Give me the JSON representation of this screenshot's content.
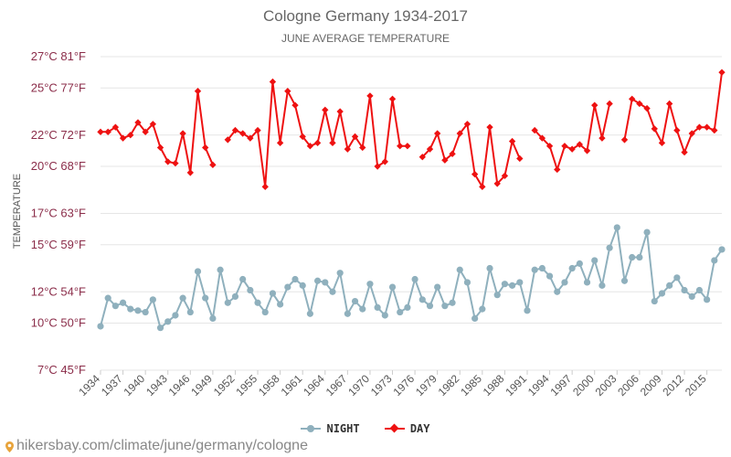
{
  "chart": {
    "title": "Cologne Germany 1934-2017",
    "subtitle": "JUNE AVERAGE TEMPERATURE",
    "ylabel": "TEMPERATURE",
    "legend": {
      "night": "NIGHT",
      "day": "DAY"
    },
    "footer": "hikersbay.com/climate/june/germany/cologne"
  },
  "colors": {
    "night": "#8fb0bd",
    "day": "#ee1111",
    "grid": "#e6e6e6",
    "axis_text": "#8b2d4a",
    "tick_text": "#555555"
  },
  "chart_data": {
    "type": "line",
    "title": "Cologne Germany 1934-2017",
    "subtitle": "JUNE AVERAGE TEMPERATURE",
    "xlabel": "",
    "ylabel": "TEMPERATURE",
    "ylim": [
      7,
      27
    ],
    "y_ticks": [
      {
        "value": 7,
        "label": "7°C 45°F"
      },
      {
        "value": 10,
        "label": "10°C 50°F"
      },
      {
        "value": 12,
        "label": "12°C 54°F"
      },
      {
        "value": 15,
        "label": "15°C 59°F"
      },
      {
        "value": 17,
        "label": "17°C 63°F"
      },
      {
        "value": 20,
        "label": "20°C 68°F"
      },
      {
        "value": 22,
        "label": "22°C 72°F"
      },
      {
        "value": 25,
        "label": "25°C 77°F"
      },
      {
        "value": 27,
        "label": "27°C 81°F"
      }
    ],
    "x_ticks": [
      1934,
      1937,
      1940,
      1943,
      1946,
      1949,
      1952,
      1955,
      1958,
      1961,
      1964,
      1967,
      1970,
      1973,
      1976,
      1979,
      1982,
      1985,
      1988,
      1991,
      1994,
      1997,
      2000,
      2003,
      2006,
      2009,
      2012,
      2015
    ],
    "x_range": [
      1934,
      2017
    ],
    "grid": true,
    "legend_position": "bottom",
    "series": [
      {
        "name": "NIGHT",
        "x": [
          1934,
          1935,
          1936,
          1937,
          1938,
          1939,
          1940,
          1941,
          1942,
          1943,
          1944,
          1945,
          1946,
          1947,
          1948,
          1949,
          1950,
          1951,
          1952,
          1953,
          1954,
          1955,
          1956,
          1957,
          1958,
          1959,
          1960,
          1961,
          1962,
          1963,
          1964,
          1965,
          1966,
          1967,
          1968,
          1969,
          1970,
          1971,
          1972,
          1973,
          1974,
          1975,
          1976,
          1977,
          1978,
          1979,
          1980,
          1981,
          1982,
          1983,
          1984,
          1985,
          1986,
          1987,
          1988,
          1989,
          1990,
          1991,
          1992,
          1993,
          1994,
          1995,
          1996,
          1997,
          1998,
          1999,
          2000,
          2001,
          2002,
          2003,
          2004,
          2005,
          2006,
          2007,
          2008,
          2009,
          2010,
          2011,
          2012,
          2013,
          2014,
          2015,
          2016,
          2017
        ],
        "values": [
          9.8,
          11.6,
          11.1,
          11.3,
          10.9,
          10.8,
          10.7,
          11.5,
          9.7,
          10.1,
          10.5,
          11.6,
          10.7,
          13.3,
          11.6,
          10.3,
          13.4,
          11.3,
          11.7,
          12.8,
          12.1,
          11.3,
          10.7,
          11.9,
          11.2,
          12.3,
          12.8,
          12.4,
          10.6,
          12.7,
          12.6,
          12.0,
          13.2,
          10.6,
          11.4,
          10.9,
          12.5,
          11.0,
          10.5,
          12.3,
          10.7,
          11.0,
          12.8,
          11.5,
          11.1,
          12.3,
          11.1,
          11.3,
          13.4,
          12.6,
          10.3,
          10.9,
          13.5,
          11.8,
          12.5,
          12.4,
          12.6,
          10.8,
          13.4,
          13.5,
          13.0,
          12.0,
          12.6,
          13.5,
          13.8,
          12.6,
          14.0,
          12.4,
          14.8,
          16.1,
          12.7,
          14.2,
          14.2,
          15.8,
          11.4,
          11.9,
          12.4,
          12.9,
          12.1,
          11.7,
          12.1,
          11.5,
          14.0,
          14.7
        ]
      },
      {
        "name": "DAY",
        "x": [
          1934,
          1935,
          1936,
          1937,
          1938,
          1939,
          1940,
          1941,
          1942,
          1943,
          1944,
          1945,
          1946,
          1947,
          1948,
          1949,
          1951,
          1952,
          1953,
          1954,
          1955,
          1956,
          1957,
          1958,
          1959,
          1960,
          1961,
          1962,
          1963,
          1964,
          1965,
          1966,
          1967,
          1968,
          1969,
          1970,
          1971,
          1972,
          1973,
          1974,
          1975,
          1977,
          1978,
          1979,
          1980,
          1981,
          1982,
          1983,
          1984,
          1985,
          1986,
          1987,
          1988,
          1989,
          1990,
          1992,
          1993,
          1994,
          1995,
          1996,
          1997,
          1998,
          1999,
          2000,
          2001,
          2002,
          2004,
          2005,
          2006,
          2007,
          2008,
          2009,
          2010,
          2011,
          2012,
          2013,
          2014,
          2015,
          2016,
          2017
        ],
        "values": [
          22.2,
          22.2,
          22.5,
          21.8,
          22.0,
          22.8,
          22.2,
          22.7,
          21.2,
          20.3,
          20.2,
          22.1,
          19.6,
          24.8,
          21.2,
          20.1,
          21.7,
          22.3,
          22.1,
          21.8,
          22.3,
          18.7,
          25.4,
          21.5,
          24.8,
          23.9,
          21.9,
          21.3,
          21.5,
          23.6,
          21.5,
          23.5,
          21.1,
          21.9,
          21.2,
          24.5,
          20.0,
          20.3,
          24.3,
          21.3,
          21.3,
          20.6,
          21.1,
          22.1,
          20.4,
          20.8,
          22.1,
          22.7,
          19.5,
          18.7,
          22.5,
          18.9,
          19.4,
          21.6,
          20.5,
          22.3,
          21.8,
          21.3,
          19.8,
          21.3,
          21.1,
          21.4,
          21.0,
          23.9,
          21.8,
          24.0,
          21.7,
          24.3,
          24.0,
          23.7,
          22.4,
          21.5,
          24.0,
          22.3,
          20.9,
          22.1,
          22.5,
          22.5,
          22.3,
          26.0
        ]
      }
    ]
  }
}
